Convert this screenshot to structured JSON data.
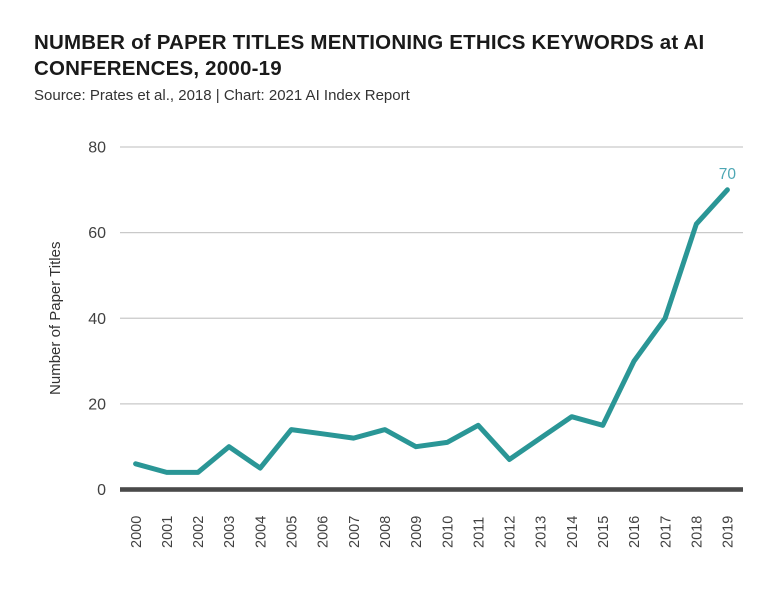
{
  "header": {
    "title_lines": [
      "NUMBER of PAPER TITLES MENTIONING ETHICS KEYWORDS at AI",
      "CONFERENCES, 2000-19"
    ],
    "source": "Source: Prates et al., 2018 | Chart: 2021 AI Index Report"
  },
  "chart_data": {
    "type": "line",
    "title": "NUMBER of PAPER TITLES MENTIONING ETHICS KEYWORDS at AI CONFERENCES, 2000-19",
    "subtitle": "Source: Prates et al., 2018 | Chart: 2021 AI Index Report",
    "categories": [
      "2000",
      "2001",
      "2002",
      "2003",
      "2004",
      "2005",
      "2006",
      "2007",
      "2008",
      "2009",
      "2010",
      "2011",
      "2012",
      "2013",
      "2014",
      "2015",
      "2016",
      "2017",
      "2018",
      "2019"
    ],
    "values": [
      6,
      4,
      4,
      10,
      5,
      14,
      13,
      12,
      14,
      10,
      11,
      15,
      7,
      12,
      17,
      15,
      30,
      40,
      62,
      70
    ],
    "xlabel": "",
    "ylabel": "Number of Paper Titles",
    "ylim": [
      0,
      80
    ],
    "yticks": [
      0,
      20,
      40,
      60,
      80
    ],
    "grid": true,
    "legend": "none",
    "annotations": [
      {
        "category": "2019",
        "value": 70,
        "label": "70"
      }
    ],
    "colors": {
      "line": "#2a9696",
      "annotation": "#4da7b4",
      "gridline": "#c9c9c9",
      "axis_baseline": "#4a4a4a"
    }
  }
}
